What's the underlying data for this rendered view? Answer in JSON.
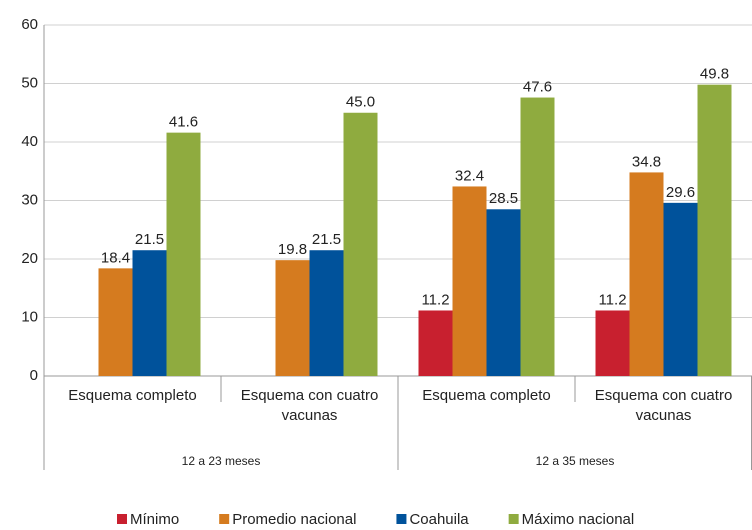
{
  "chart_data": {
    "type": "bar",
    "categories": [
      "Esquema completo",
      "Esquema con cuatro vacunas",
      "Esquema completo",
      "Esquema con cuatro vacunas"
    ],
    "group_labels": [
      "12 a 23 meses",
      "12 a 35 meses"
    ],
    "series": [
      {
        "name": "Mínimo",
        "color": "#c8202f",
        "values": [
          null,
          null,
          11.2,
          11.2
        ],
        "value_labels": [
          null,
          null,
          "11.2",
          "11.2"
        ]
      },
      {
        "name": "Promedio nacional",
        "color": "#d57b1f",
        "values": [
          18.4,
          19.8,
          32.4,
          34.8
        ],
        "value_labels": [
          "18.4",
          "19.8",
          "32.4",
          "34.8"
        ]
      },
      {
        "name": "Coahuila",
        "color": "#00529b",
        "values": [
          21.5,
          21.5,
          28.5,
          29.6
        ],
        "value_labels": [
          "21.5",
          "21.5",
          "28.5",
          "29.6"
        ]
      },
      {
        "name": "Máximo nacional",
        "color": "#8fab3f",
        "values": [
          41.6,
          45.0,
          47.6,
          49.8
        ],
        "value_labels": [
          "41.6",
          "45.0",
          "47.6",
          "49.8"
        ]
      }
    ],
    "ylim": [
      0,
      60
    ],
    "yticks": [
      0,
      10,
      20,
      30,
      40,
      50,
      60
    ],
    "grid": true,
    "legend": "bottom"
  }
}
